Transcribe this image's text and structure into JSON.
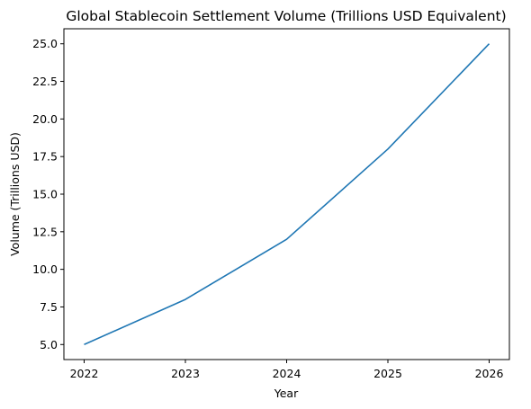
{
  "chart_data": {
    "type": "line",
    "title": "Global Stablecoin Settlement Volume (Trillions USD Equivalent)",
    "xlabel": "Year",
    "ylabel": "Volume (Trillions USD)",
    "x": [
      2022,
      2023,
      2024,
      2025,
      2026
    ],
    "series": [
      {
        "values": [
          5,
          8,
          12,
          18,
          25
        ],
        "color": "#1f77b4"
      }
    ],
    "xticks": [
      "2022",
      "2023",
      "2024",
      "2025",
      "2026"
    ],
    "yticks": [
      "5.0",
      "7.5",
      "10.0",
      "12.5",
      "15.0",
      "17.5",
      "20.0",
      "22.5",
      "25.0"
    ],
    "ylim": [
      4,
      26
    ],
    "xlim": [
      2021.8,
      2026.2
    ],
    "grid": false,
    "legend": "none"
  }
}
